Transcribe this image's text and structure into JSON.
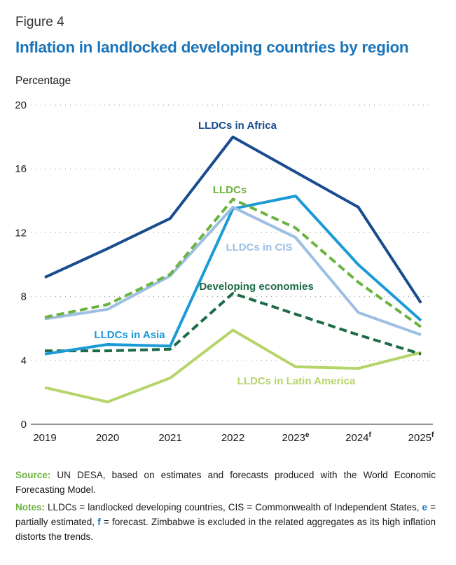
{
  "figure_label": "Figure 4",
  "title": "Inflation in landlocked developing countries by region",
  "y_unit": "Percentage",
  "chart_data": {
    "type": "line",
    "categories": [
      "2019",
      "2020",
      "2021",
      "2022",
      "2023",
      "2024",
      "2025"
    ],
    "category_superscripts": [
      "",
      "",
      "",
      "",
      "e",
      "f",
      "f"
    ],
    "ylim": [
      0,
      20
    ],
    "yticks": [
      0,
      4,
      8,
      12,
      16,
      20
    ],
    "grid": "horizontal dotted",
    "series": [
      {
        "name": "LLDCs in Africa",
        "color": "#184c8f",
        "dashed": false,
        "values": [
          9.2,
          11.0,
          12.9,
          18.0,
          15.8,
          13.6,
          7.6
        ]
      },
      {
        "name": "LLDCs",
        "color": "#6cb33f",
        "dashed": true,
        "values": [
          6.7,
          7.5,
          9.4,
          14.1,
          12.3,
          8.9,
          6.1
        ]
      },
      {
        "name": "LLDCs in CIS",
        "color": "#9dbfe3",
        "dashed": false,
        "values": [
          6.6,
          7.2,
          9.3,
          13.6,
          11.7,
          7.0,
          5.6
        ]
      },
      {
        "name": "LLDCs in Asia",
        "color": "#1b9ad6",
        "dashed": false,
        "values": [
          4.4,
          5.0,
          4.9,
          13.5,
          14.3,
          10.0,
          6.5
        ]
      },
      {
        "name": "Developing economies",
        "color": "#1e6b47",
        "dashed": true,
        "values": [
          4.6,
          4.6,
          4.7,
          8.2,
          6.9,
          5.6,
          4.4
        ]
      },
      {
        "name": "LLDCs in Latin America",
        "color": "#b5d56a",
        "dashed": false,
        "values": [
          2.3,
          1.4,
          2.9,
          5.9,
          3.6,
          3.5,
          4.5
        ]
      }
    ]
  },
  "notes": {
    "source_label": "Source:",
    "source_text": " UN DESA, based on estimates and forecasts produced with the World Economic Forecasting Model.",
    "notes_label": "Notes:",
    "notes_text_1": " LLDCs = landlocked developing countries, CIS = Commonwealth of Independent States,",
    "e_label": "e",
    "notes_text_2": " = partially estimated, ",
    "f_label": "f",
    "notes_text_3": " = forecast. Zimbabwe is excluded in the related aggregates as its high inflation distorts the trends."
  }
}
